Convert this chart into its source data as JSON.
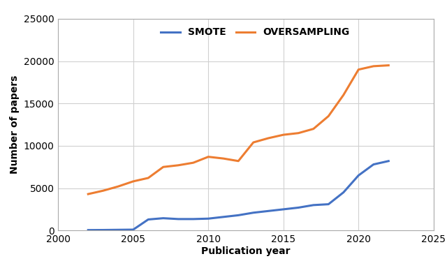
{
  "smote_x": [
    2002,
    2003,
    2004,
    2005,
    2006,
    2007,
    2008,
    2009,
    2010,
    2011,
    2012,
    2013,
    2014,
    2015,
    2016,
    2017,
    2018,
    2019,
    2020,
    2021,
    2022
  ],
  "smote_y": [
    50,
    60,
    80,
    100,
    1300,
    1450,
    1350,
    1350,
    1400,
    1600,
    1800,
    2100,
    2300,
    2500,
    2700,
    3000,
    3100,
    4500,
    6500,
    7800,
    8200
  ],
  "oversampling_x": [
    2002,
    2003,
    2004,
    2005,
    2006,
    2007,
    2008,
    2009,
    2010,
    2011,
    2012,
    2013,
    2014,
    2015,
    2016,
    2017,
    2018,
    2019,
    2020,
    2021,
    2022
  ],
  "oversampling_y": [
    4300,
    4700,
    5200,
    5800,
    6200,
    7500,
    7700,
    8000,
    8700,
    8500,
    8200,
    10400,
    10900,
    11300,
    11500,
    12000,
    13500,
    16000,
    19000,
    19400,
    19500
  ],
  "smote_color": "#4472C4",
  "oversampling_color": "#ED7D31",
  "xlabel": "Publication year",
  "ylabel": "Number of papers",
  "xlim": [
    2000,
    2025
  ],
  "ylim": [
    0,
    25000
  ],
  "yticks": [
    0,
    5000,
    10000,
    15000,
    20000,
    25000
  ],
  "xticks": [
    2000,
    2005,
    2010,
    2015,
    2020,
    2025
  ],
  "legend_smote": "SMOTE",
  "legend_oversampling": "OVERSAMPLING",
  "linewidth": 2.2,
  "background_color": "#ffffff",
  "grid_color": "#d0d0d0"
}
